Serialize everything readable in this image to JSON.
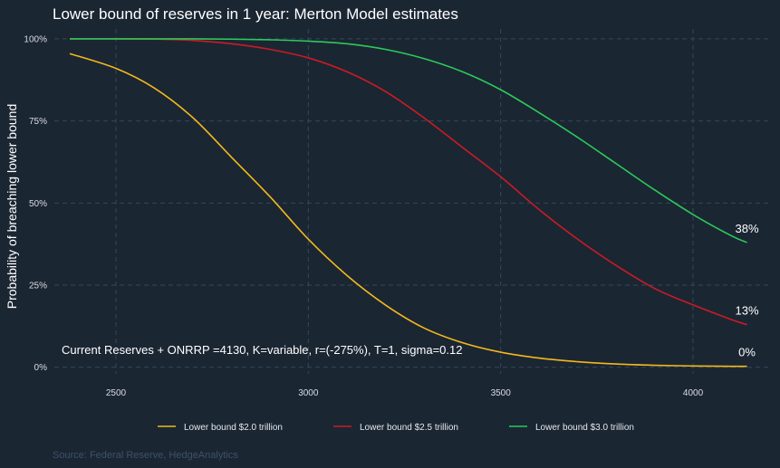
{
  "chart_data": {
    "type": "line",
    "title": "Lower bound of reserves in 1 year: Merton Model estimates",
    "xlabel": "",
    "ylabel": "Probability of breaching lower bound",
    "xlim": [
      2340,
      4200
    ],
    "ylim": [
      -0.02,
      1.03
    ],
    "x_ticks": [
      2500,
      3000,
      3500,
      4000
    ],
    "y_ticks": [
      {
        "value": 0,
        "label": "0%"
      },
      {
        "value": 0.25,
        "label": "25%"
      },
      {
        "value": 0.5,
        "label": "50%"
      },
      {
        "value": 0.75,
        "label": "75%"
      },
      {
        "value": 1,
        "label": "100%"
      }
    ],
    "grid": true,
    "legend_position": "bottom",
    "annotation": "Current Reserves + ONRRP =4130, K=variable, r=(-275%), T=1, sigma=0.12",
    "source": "Source: Federal Reserve, HedgeAnalytics",
    "series": [
      {
        "name": "Lower bound $2.0 trillion",
        "color": "#f2b91c",
        "end_label": "0%",
        "x": [
          2380,
          2500,
          2600,
          2700,
          2800,
          2900,
          3000,
          3100,
          3200,
          3300,
          3400,
          3500,
          3600,
          3700,
          3800,
          3900,
          4000,
          4100,
          4140
        ],
        "y": [
          0.955,
          0.91,
          0.85,
          0.76,
          0.64,
          0.52,
          0.39,
          0.28,
          0.19,
          0.12,
          0.075,
          0.046,
          0.028,
          0.017,
          0.01,
          0.006,
          0.004,
          0.003,
          0.003
        ]
      },
      {
        "name": "Lower bound $2.5 trillion",
        "color": "#cc1b24",
        "end_label": "13%",
        "x": [
          2380,
          2500,
          2600,
          2700,
          2800,
          2900,
          3000,
          3100,
          3200,
          3300,
          3400,
          3500,
          3600,
          3700,
          3800,
          3900,
          4000,
          4100,
          4140
        ],
        "y": [
          1.0,
          1.0,
          0.999,
          0.995,
          0.985,
          0.968,
          0.942,
          0.9,
          0.84,
          0.76,
          0.67,
          0.58,
          0.48,
          0.39,
          0.31,
          0.24,
          0.19,
          0.145,
          0.13
        ]
      },
      {
        "name": "Lower bound $3.0 trillion",
        "color": "#2bcb5a",
        "end_label": "38%",
        "x": [
          2380,
          2500,
          2600,
          2700,
          2800,
          2900,
          3000,
          3100,
          3200,
          3300,
          3400,
          3500,
          3600,
          3700,
          3800,
          3900,
          4000,
          4100,
          4140
        ],
        "y": [
          1.0,
          1.0,
          1.0,
          1.0,
          0.999,
          0.997,
          0.993,
          0.985,
          0.968,
          0.94,
          0.9,
          0.845,
          0.775,
          0.7,
          0.62,
          0.54,
          0.465,
          0.4,
          0.38
        ]
      }
    ]
  }
}
